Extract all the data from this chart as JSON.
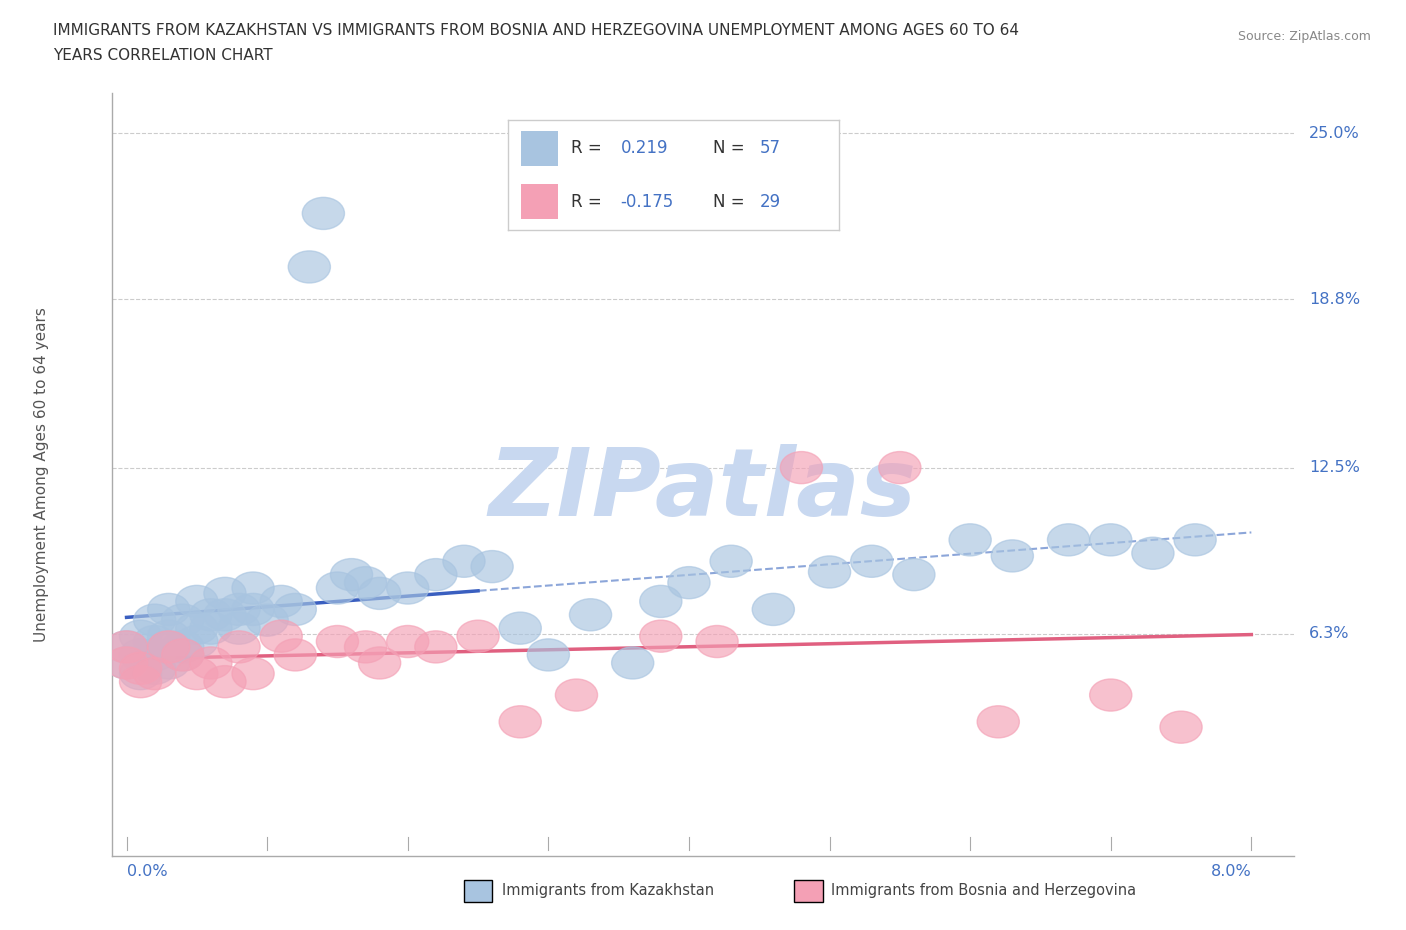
{
  "title_line1": "IMMIGRANTS FROM KAZAKHSTAN VS IMMIGRANTS FROM BOSNIA AND HERZEGOVINA UNEMPLOYMENT AMONG AGES 60 TO 64",
  "title_line2": "YEARS CORRELATION CHART",
  "source": "Source: ZipAtlas.com",
  "ylabel": "Unemployment Among Ages 60 to 64 years",
  "xlim": [
    0.0,
    0.08
  ],
  "ylim": [
    0.0,
    0.25
  ],
  "kaz_R": 0.219,
  "kaz_N": 57,
  "bos_R": -0.175,
  "bos_N": 29,
  "kaz_color": "#a8c4e0",
  "bos_color": "#f4a0b5",
  "kaz_line_color": "#3a5fc0",
  "bos_line_color": "#e06080",
  "kaz_dashed_color": "#7090d0",
  "right_label_color": "#4472c4",
  "ytick_vals": [
    0.063,
    0.125,
    0.188,
    0.25
  ],
  "ytick_labels": [
    "6.3%",
    "12.5%",
    "18.8%",
    "25.0%"
  ],
  "kaz_x": [
    0.0,
    0.0,
    0.001,
    0.001,
    0.001,
    0.002,
    0.002,
    0.002,
    0.002,
    0.003,
    0.003,
    0.003,
    0.003,
    0.004,
    0.004,
    0.004,
    0.005,
    0.005,
    0.005,
    0.006,
    0.006,
    0.007,
    0.007,
    0.008,
    0.008,
    0.009,
    0.009,
    0.01,
    0.011,
    0.012,
    0.013,
    0.014,
    0.015,
    0.016,
    0.017,
    0.018,
    0.02,
    0.022,
    0.024,
    0.026,
    0.028,
    0.03,
    0.033,
    0.036,
    0.038,
    0.04,
    0.043,
    0.046,
    0.05,
    0.053,
    0.056,
    0.06,
    0.063,
    0.067,
    0.07,
    0.073,
    0.076
  ],
  "kaz_y": [
    0.052,
    0.058,
    0.055,
    0.062,
    0.048,
    0.06,
    0.055,
    0.068,
    0.05,
    0.062,
    0.072,
    0.052,
    0.058,
    0.068,
    0.058,
    0.055,
    0.075,
    0.065,
    0.06,
    0.07,
    0.065,
    0.078,
    0.07,
    0.072,
    0.065,
    0.08,
    0.072,
    0.068,
    0.075,
    0.072,
    0.2,
    0.22,
    0.08,
    0.085,
    0.082,
    0.078,
    0.08,
    0.085,
    0.09,
    0.088,
    0.065,
    0.055,
    0.07,
    0.052,
    0.075,
    0.082,
    0.09,
    0.072,
    0.086,
    0.09,
    0.085,
    0.098,
    0.092,
    0.098,
    0.098,
    0.093,
    0.098
  ],
  "bos_x": [
    0.0,
    0.0,
    0.001,
    0.001,
    0.002,
    0.003,
    0.004,
    0.005,
    0.006,
    0.007,
    0.008,
    0.009,
    0.011,
    0.012,
    0.015,
    0.017,
    0.018,
    0.02,
    0.022,
    0.025,
    0.028,
    0.032,
    0.038,
    0.042,
    0.048,
    0.055,
    0.062,
    0.07,
    0.075
  ],
  "bos_y": [
    0.052,
    0.058,
    0.05,
    0.045,
    0.048,
    0.058,
    0.055,
    0.048,
    0.052,
    0.045,
    0.058,
    0.048,
    0.062,
    0.055,
    0.06,
    0.058,
    0.052,
    0.06,
    0.058,
    0.062,
    0.03,
    0.04,
    0.062,
    0.06,
    0.125,
    0.125,
    0.03,
    0.04,
    0.028
  ],
  "kaz_line_x_end": 0.025,
  "watermark_text": "ZIPatlas",
  "watermark_color": "#c8d8f0"
}
